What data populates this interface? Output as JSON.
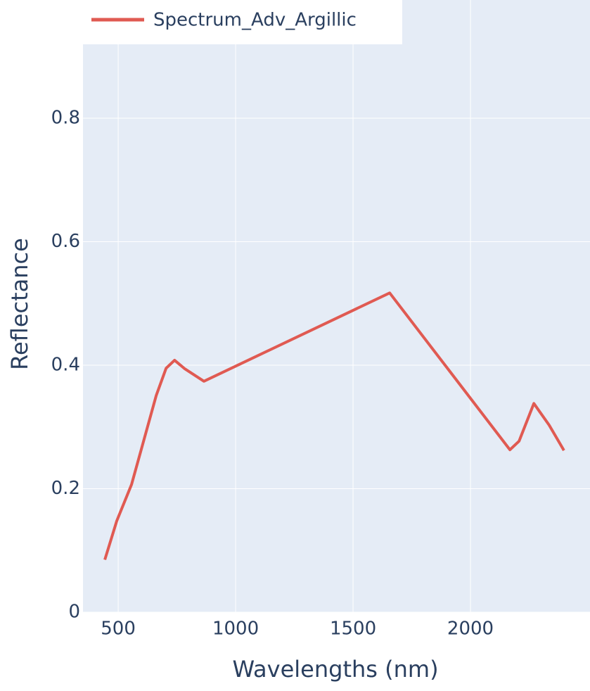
{
  "chart_data": {
    "type": "line",
    "x_label": "Wavelengths (nm)",
    "y_label": "Reflectance",
    "series": [
      {
        "name": "Spectrum_Adv_Argillic",
        "color": "#e05a52",
        "x": [
          443,
          494,
          557,
          662,
          704,
          740,
          784,
          865,
          1656,
          2168,
          2207,
          2270,
          2335,
          2398
        ],
        "values": [
          0.085,
          0.148,
          0.207,
          0.351,
          0.395,
          0.408,
          0.394,
          0.374,
          0.517,
          0.263,
          0.277,
          0.338,
          0.303,
          0.262
        ]
      }
    ],
    "xlim": [
      350,
      2509
    ],
    "xticks": [
      500,
      1000,
      1500,
      2000
    ],
    "ylim": [
      0,
      0.99
    ],
    "yticks": [
      0,
      0.2,
      0.4,
      0.6,
      0.8
    ],
    "legend": "top-left"
  }
}
